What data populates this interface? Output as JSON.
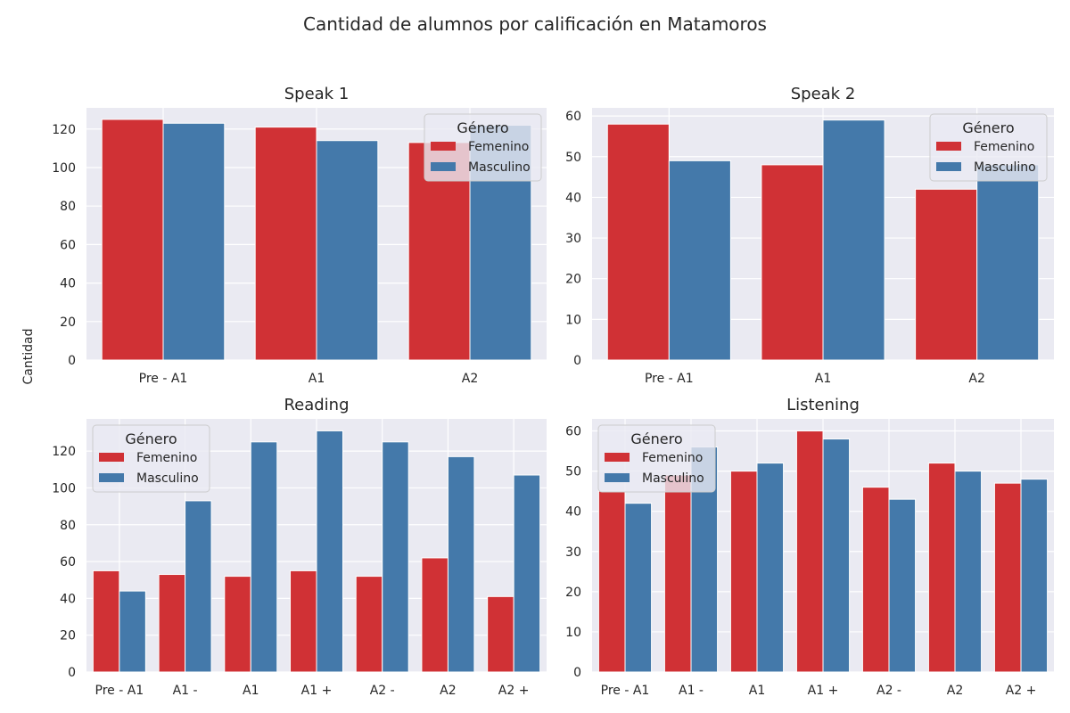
{
  "figure": {
    "suptitle": "Cantidad de alumnos por calificación en Matamoros",
    "ylabel": "Cantidad",
    "colors": {
      "background": "#eaeaf2",
      "grid": "#ffffff",
      "femenino": "#d03135",
      "masculino": "#4479aa",
      "text": "#262626"
    }
  },
  "chart_data": [
    {
      "type": "bar",
      "title": "Speak 1",
      "categories": [
        "Pre - A1",
        "A1",
        "A2"
      ],
      "series": [
        {
          "name": "Femenino",
          "values": [
            125,
            121,
            113
          ]
        },
        {
          "name": "Masculino",
          "values": [
            123,
            114,
            122
          ]
        }
      ],
      "ylim": [
        0,
        131
      ],
      "yticks": [
        0,
        20,
        40,
        60,
        80,
        100,
        120
      ],
      "legend": {
        "title": "Género",
        "placement": "top-right"
      },
      "grid": true
    },
    {
      "type": "bar",
      "title": "Speak 2",
      "categories": [
        "Pre - A1",
        "A1",
        "A2"
      ],
      "series": [
        {
          "name": "Femenino",
          "values": [
            58,
            48,
            42
          ]
        },
        {
          "name": "Masculino",
          "values": [
            49,
            59,
            48
          ]
        }
      ],
      "ylim": [
        0,
        62
      ],
      "yticks": [
        0,
        10,
        20,
        30,
        40,
        50,
        60
      ],
      "legend": {
        "title": "Género",
        "placement": "top-right"
      },
      "grid": true
    },
    {
      "type": "bar",
      "title": "Reading",
      "categories": [
        "Pre - A1",
        "A1 -",
        "A1",
        "A1 +",
        "A2 -",
        "A2",
        "A2 +"
      ],
      "series": [
        {
          "name": "Femenino",
          "values": [
            55,
            53,
            52,
            55,
            52,
            62,
            41
          ]
        },
        {
          "name": "Masculino",
          "values": [
            44,
            93,
            125,
            131,
            125,
            117,
            107
          ]
        }
      ],
      "ylim": [
        0,
        137.5
      ],
      "yticks": [
        0,
        20,
        40,
        60,
        80,
        100,
        120
      ],
      "legend": {
        "title": "Género",
        "placement": "top-left"
      },
      "grid": true
    },
    {
      "type": "bar",
      "title": "Listening",
      "categories": [
        "Pre - A1",
        "A1 -",
        "A1",
        "A1 +",
        "A2 -",
        "A2",
        "A2 +"
      ],
      "series": [
        {
          "name": "Femenino",
          "values": [
            45,
            49,
            50,
            60,
            46,
            52,
            47
          ]
        },
        {
          "name": "Masculino",
          "values": [
            42,
            56,
            52,
            58,
            43,
            50,
            48
          ]
        }
      ],
      "ylim": [
        0,
        63
      ],
      "yticks": [
        0,
        10,
        20,
        30,
        40,
        50,
        60
      ],
      "legend": {
        "title": "Género",
        "placement": "top-left"
      },
      "grid": true
    }
  ]
}
